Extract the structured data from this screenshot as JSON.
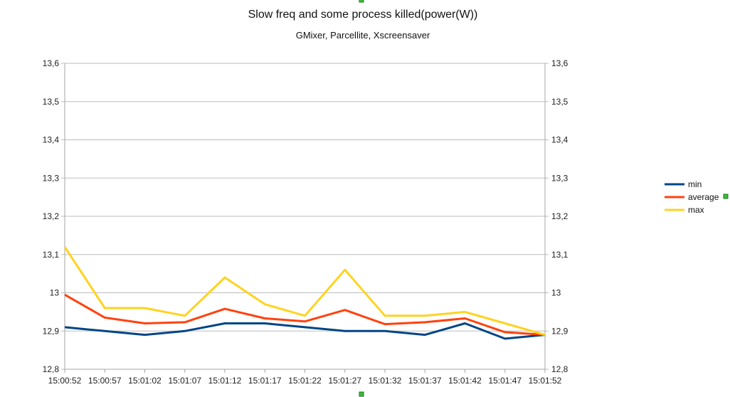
{
  "chart_data": {
    "type": "line",
    "title": "Slow freq and some process killed(power(W))",
    "subtitle": "GMixer, Parcellite, Xscreensaver",
    "xlabel": "",
    "ylabel": "",
    "x": [
      "15:00:52",
      "15:00:57",
      "15:01:02",
      "15:01:07",
      "15:01:12",
      "15:01:17",
      "15:01:22",
      "15:01:27",
      "15:01:32",
      "15:01:37",
      "15:01:42",
      "15:01:47",
      "15:01:52"
    ],
    "ylim": [
      12.8,
      13.6
    ],
    "y_ticks": [
      "12,8",
      "12,9",
      "13",
      "13,1",
      "13,2",
      "13,3",
      "13,4",
      "13,5",
      "13,6"
    ],
    "grid": true,
    "legend_position": "right",
    "series": [
      {
        "name": "min",
        "color": "#004586",
        "values": [
          12.91,
          12.9,
          12.89,
          12.9,
          12.92,
          12.92,
          12.91,
          12.9,
          12.9,
          12.89,
          12.92,
          12.88,
          12.89
        ]
      },
      {
        "name": "average",
        "color": "#ff420e",
        "values": [
          12.995,
          12.935,
          12.92,
          12.923,
          12.958,
          12.933,
          12.925,
          12.955,
          12.918,
          12.923,
          12.933,
          12.897,
          12.89
        ]
      },
      {
        "name": "max",
        "color": "#ffd320",
        "values": [
          13.12,
          12.96,
          12.96,
          12.94,
          13.04,
          12.97,
          12.94,
          13.06,
          12.94,
          12.94,
          12.95,
          12.92,
          12.89
        ]
      }
    ]
  }
}
